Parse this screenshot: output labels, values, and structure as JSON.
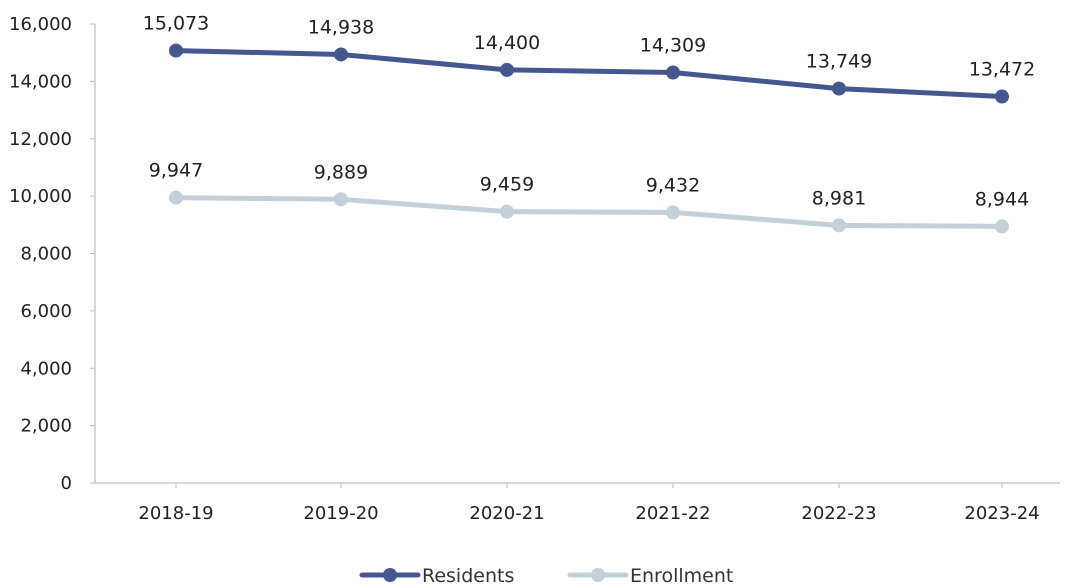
{
  "chart_data": {
    "type": "line",
    "categories": [
      "2018-19",
      "2019-20",
      "2020-21",
      "2021-22",
      "2022-23",
      "2023-24"
    ],
    "series": [
      {
        "name": "Residents",
        "values": [
          15073,
          14938,
          14400,
          14309,
          13749,
          13472
        ],
        "labels": [
          "15,073",
          "14,938",
          "14,400",
          "14,309",
          "13,749",
          "13,472"
        ],
        "color": "#44578f"
      },
      {
        "name": "Enrollment",
        "values": [
          9947,
          9889,
          9459,
          9432,
          8981,
          8944
        ],
        "labels": [
          "9,947",
          "9,889",
          "9,459",
          "9,432",
          "8,981",
          "8,944"
        ],
        "color": "#c3d0d8"
      }
    ],
    "ylim": [
      0,
      16000
    ],
    "y_ticks": [
      0,
      2000,
      4000,
      6000,
      8000,
      10000,
      12000,
      14000,
      16000
    ],
    "y_tick_labels": [
      "0",
      "2,000",
      "4,000",
      "6,000",
      "8,000",
      "10,000",
      "12,000",
      "14,000",
      "16,000"
    ],
    "title": "",
    "xlabel": "",
    "ylabel": "",
    "grid": false,
    "legend_position": "bottom-center",
    "axis_color": "#bfbfbf"
  }
}
